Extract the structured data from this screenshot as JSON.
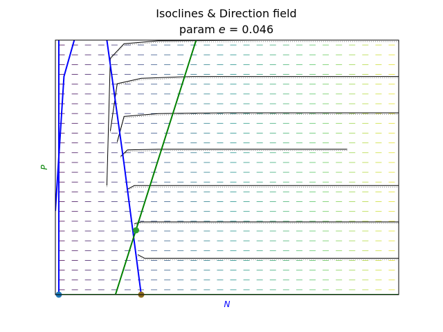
{
  "chart_data": {
    "type": "line",
    "title": "Isoclines & Direction field",
    "subtitle_prefix": "param ",
    "subtitle_param": "e",
    "subtitle_suffix": " = 0.046",
    "xlabel": "N",
    "ylabel": "P",
    "xlim": [
      0,
      10
    ],
    "ylim": [
      0,
      7
    ],
    "grid": false,
    "colors": {
      "isocline_N": "#0000ff",
      "isocline_P": "#008000",
      "trajectory": "#000000",
      "ylabel": "#008000",
      "xlabel": "#0000ff",
      "equilibrium_origin": "#1f77b4",
      "equilibrium_prey": "#8c6d1f",
      "equilibrium_coexist": "#2ca02c"
    },
    "series": [
      {
        "kind": "N-isocline-vertical",
        "x": [
          0.1,
          0.1
        ],
        "y": [
          0,
          7
        ]
      },
      {
        "kind": "N-isocline-hump",
        "x": [
          0.0,
          0.25,
          0.55
        ],
        "y": [
          2.3,
          6.0,
          7.0
        ]
      },
      {
        "kind": "N-isocline-descending",
        "x": [
          1.5,
          2.0,
          2.5
        ],
        "y": [
          7.0,
          3.6,
          0
        ]
      },
      {
        "kind": "P-isocline-horizontal",
        "x": [
          0,
          10
        ],
        "y": [
          0,
          0
        ]
      },
      {
        "kind": "P-isocline-sloped",
        "x": [
          1.75,
          4.1
        ],
        "y": [
          0,
          7.0
        ]
      }
    ],
    "equilibria": [
      {
        "name": "origin",
        "x": 0.1,
        "y": 0
      },
      {
        "name": "prey-only",
        "x": 2.5,
        "y": 0
      },
      {
        "name": "coexistence",
        "x": 2.35,
        "y": 1.77
      }
    ],
    "trajectories": [
      {
        "y0": 7.0,
        "x": [
          1.5,
          1.6,
          2.0,
          3.0,
          6.0,
          10.0
        ],
        "y": [
          3.0,
          6.5,
          6.9,
          6.98,
          7.0,
          7.0
        ]
      },
      {
        "y0": 6.0,
        "x": [
          1.6,
          1.8,
          2.5,
          4.0,
          7.0,
          10.0
        ],
        "y": [
          4.5,
          5.8,
          5.95,
          6.0,
          6.0,
          6.0
        ]
      },
      {
        "y0": 5.0,
        "x": [
          1.8,
          2.0,
          3.0,
          5.0,
          8.0,
          10.0
        ],
        "y": [
          4.2,
          4.9,
          4.98,
          5.0,
          5.0,
          5.0
        ]
      },
      {
        "y0": 4.0,
        "x": [
          1.9,
          2.1,
          3.0,
          5.0,
          8.0,
          8.5
        ],
        "y": [
          3.8,
          3.98,
          4.0,
          4.0,
          4.0,
          4.0
        ]
      },
      {
        "y0": 3.0,
        "x": [
          2.1,
          2.3,
          3.5,
          6.0,
          10.0
        ],
        "y": [
          2.9,
          3.0,
          3.0,
          3.0,
          3.0
        ]
      },
      {
        "y0": 2.0,
        "x": [
          2.3,
          2.5,
          4.0,
          7.0,
          10.0
        ],
        "y": [
          1.95,
          2.0,
          2.0,
          2.0,
          2.0
        ]
      },
      {
        "y0": 1.0,
        "x": [
          2.4,
          2.6,
          4.0,
          7.0,
          10.0
        ],
        "y": [
          1.1,
          1.0,
          1.0,
          1.0,
          1.0
        ]
      }
    ],
    "direction_field": {
      "nx": 26,
      "ny": 26,
      "colormap": "viridis",
      "arrow_direction": "left"
    }
  }
}
